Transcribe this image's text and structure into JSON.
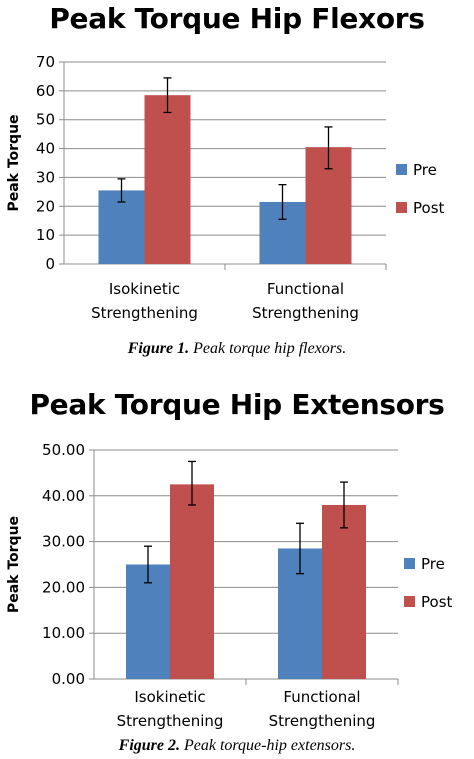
{
  "chart_data": [
    {
      "type": "bar",
      "title": "Peak Torque Hip Flexors",
      "ylabel": "Peak Torque",
      "xlabel": "",
      "categories": [
        [
          "Isokinetic",
          "Strengthening"
        ],
        [
          "Functional",
          "Strengthening"
        ]
      ],
      "ylim": [
        0,
        70
      ],
      "yticks": [
        0,
        10,
        20,
        30,
        40,
        50,
        60,
        70
      ],
      "ytick_format": 0,
      "grid": true,
      "legend": "right",
      "series": [
        {
          "name": "Pre",
          "color": "#4F81BD",
          "values": [
            25.5,
            21.5
          ],
          "err_low": [
            21.5,
            15.5
          ],
          "err_high": [
            29.5,
            27.5
          ]
        },
        {
          "name": "Post",
          "color": "#C0504D",
          "values": [
            58.5,
            40.5
          ],
          "err_low": [
            52.5,
            33.0
          ],
          "err_high": [
            64.5,
            47.5
          ]
        }
      ],
      "caption_label": "Figure 1.",
      "caption_text": "Peak torque hip flexors."
    },
    {
      "type": "bar",
      "title": "Peak Torque Hip Extensors",
      "ylabel": "Peak Torque",
      "xlabel": "",
      "categories": [
        [
          "Isokinetic",
          "Strengthening"
        ],
        [
          "Functional",
          "Strengthening"
        ]
      ],
      "ylim": [
        0,
        50
      ],
      "yticks": [
        0,
        10,
        20,
        30,
        40,
        50
      ],
      "ytick_format": 2,
      "grid": true,
      "legend": "right",
      "series": [
        {
          "name": "Pre",
          "color": "#4F81BD",
          "values": [
            25.0,
            28.5
          ],
          "err_low": [
            21.0,
            23.0
          ],
          "err_high": [
            29.0,
            34.0
          ]
        },
        {
          "name": "Post",
          "color": "#C0504D",
          "values": [
            42.5,
            38.0
          ],
          "err_low": [
            38.0,
            33.0
          ],
          "err_high": [
            47.5,
            43.0
          ]
        }
      ],
      "caption_label": "Figure 2.",
      "caption_text": "Peak torque-hip extensors."
    }
  ]
}
